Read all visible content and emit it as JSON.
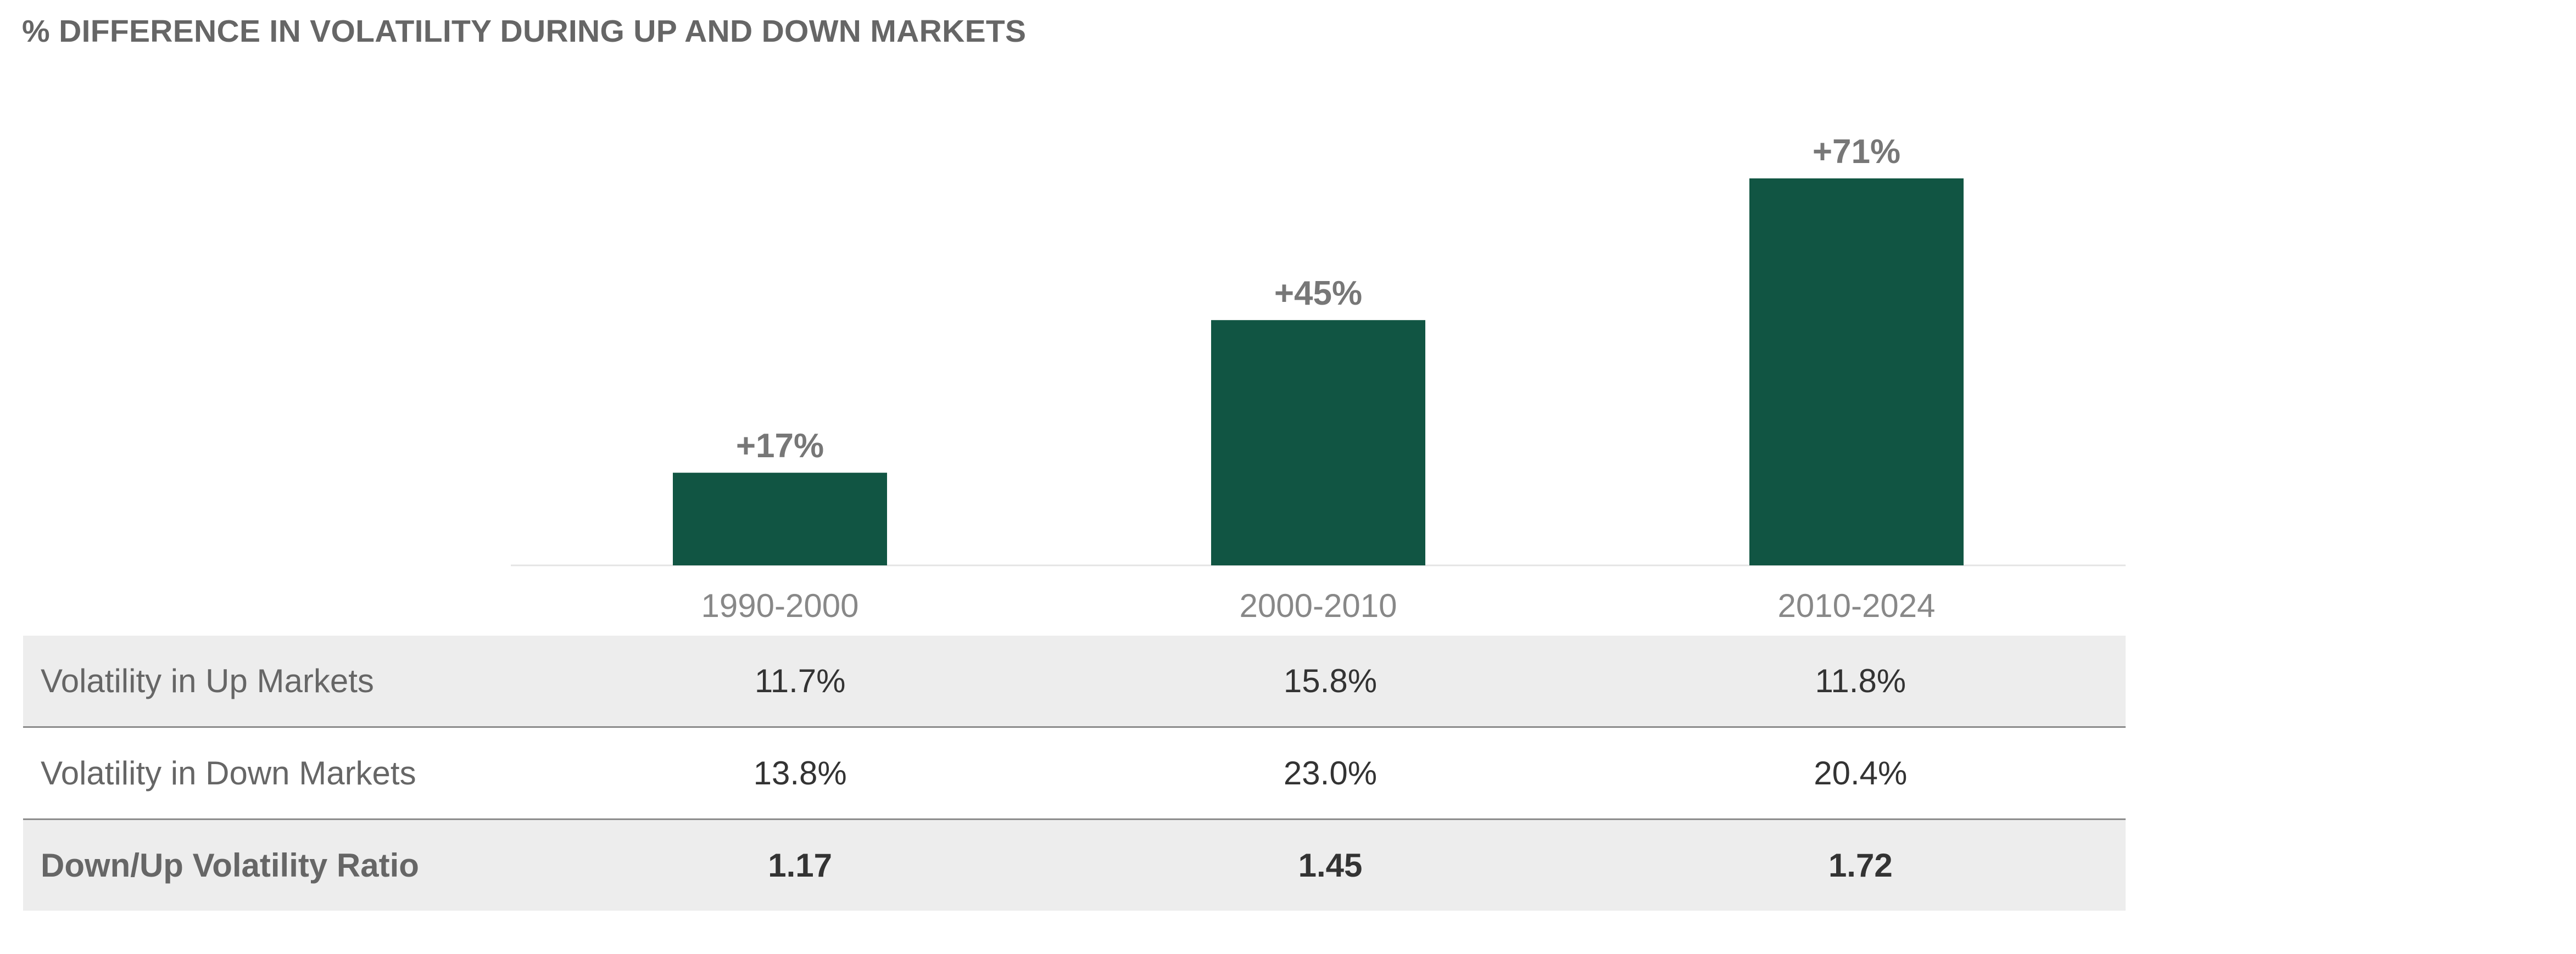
{
  "title": "% DIFFERENCE IN VOLATILITY DURING UP AND DOWN MARKETS",
  "colors": {
    "bar": "#115543",
    "data_label": "#777777",
    "category_label": "#888888",
    "row_shading": "#ededed",
    "row_divider": "#8c8c8c"
  },
  "chart_data": {
    "type": "bar",
    "title": "% DIFFERENCE IN VOLATILITY DURING UP AND DOWN MARKETS",
    "categories": [
      "1990-2000",
      "2000-2010",
      "2010-2024"
    ],
    "values": [
      17,
      45,
      71
    ],
    "data_labels": [
      "+17%",
      "+45%",
      "+71%"
    ],
    "grid": false,
    "legend": "none"
  },
  "table": {
    "rows": [
      {
        "label": "Volatility in Up Markets",
        "values": [
          "11.7%",
          "15.8%",
          "11.8%"
        ]
      },
      {
        "label": "Volatility in Down Markets",
        "values": [
          "13.8%",
          "23.0%",
          "20.4%"
        ]
      },
      {
        "label": "Down/Up Volatility Ratio",
        "values": [
          "1.17",
          "1.45",
          "1.72"
        ]
      }
    ]
  }
}
